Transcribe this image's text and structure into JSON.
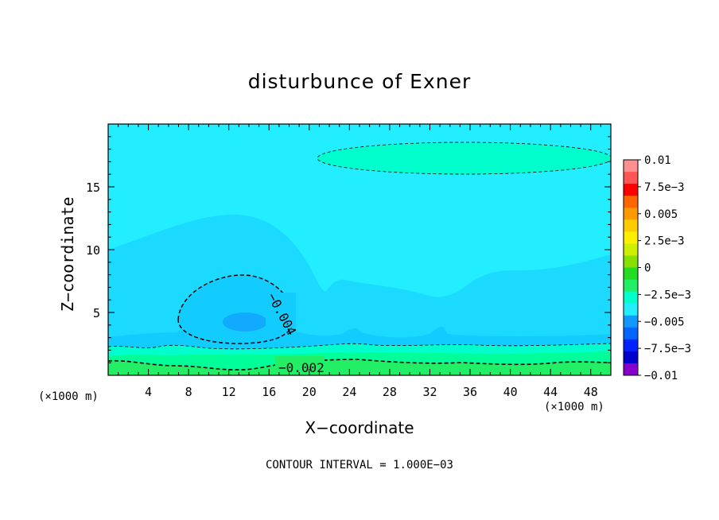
{
  "chart_data": {
    "type": "contour",
    "title": "disturbunce of Exner",
    "xlabel": "X−coordinate",
    "ylabel": "Z−coordinate",
    "x_unit": "(×1000 m)",
    "x_unit_right": "(×1000 m)",
    "footer": "CONTOUR INTERVAL = 1.000E−03",
    "xlim": [
      0,
      50
    ],
    "ylim": [
      0,
      20
    ],
    "xticks": [
      4,
      8,
      12,
      16,
      20,
      24,
      28,
      32,
      36,
      40,
      44,
      48
    ],
    "xtick_labels": [
      "4",
      "8",
      "12",
      "16",
      "20",
      "24",
      "28",
      "32",
      "36",
      "40",
      "44",
      "48"
    ],
    "yticks": [
      5,
      10,
      15
    ],
    "ytick_labels": [
      "5",
      "10",
      "15"
    ],
    "contour_labels": [
      {
        "text": "−0.004",
        "x": 16.5,
        "z": 5.5
      },
      {
        "text": "−0.002",
        "x": 19,
        "z": 0.7
      }
    ],
    "colorbar": {
      "levels": [
        -0.01,
        -0.0075,
        -0.005,
        -0.0025,
        0,
        0.0025,
        0.005,
        0.0075,
        0.01
      ],
      "labels": [
        "0.01",
        "7.5e−3",
        "0.005",
        "2.5e−3",
        "0",
        "−2.5e−3",
        "−0.005",
        "−7.5e−3",
        "−0.01"
      ],
      "colors_top_to_bottom": [
        "#ff9090",
        "#ff5555",
        "#ff0000",
        "#ff6600",
        "#ff9900",
        "#ffcc00",
        "#ffee00",
        "#ccf000",
        "#88e000",
        "#22dd22",
        "#22ee66",
        "#00ffcc",
        "#22eeff",
        "#1199ff",
        "#0066ff",
        "#0022ff",
        "#0000cc",
        "#8800cc"
      ]
    },
    "fill_colors": {
      "background": "#22eeff",
      "band_mid": "#1cd9ff",
      "band_low": "#13ccff",
      "minimum": "#11aaff",
      "ellipse": "#00ffcc",
      "surface_1": "#00ffcc",
      "surface_2": "#00ff99",
      "surface_3": "#22ee66"
    }
  }
}
